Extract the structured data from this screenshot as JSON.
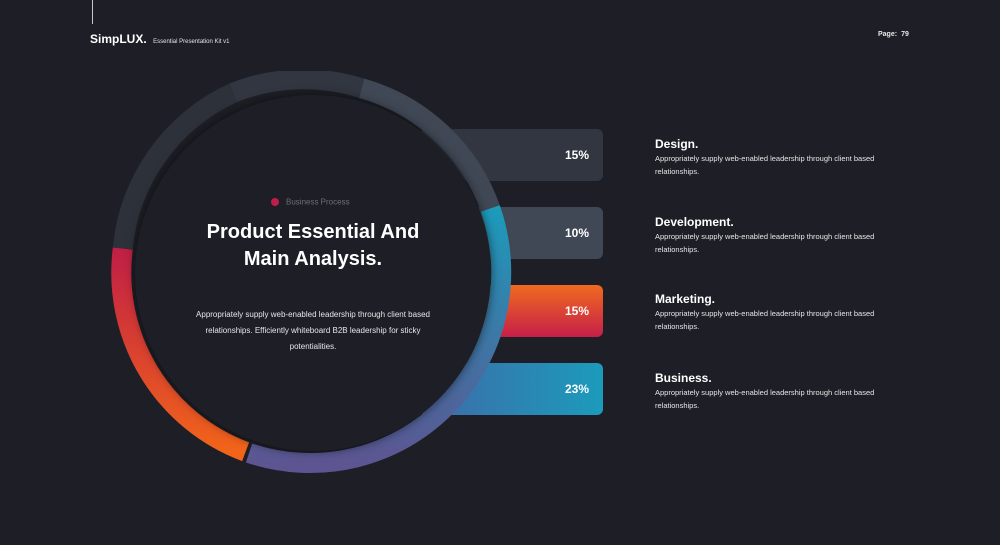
{
  "header": {
    "brand": "SimpLUX.",
    "subtitle": "Essential Presentation Kit v1",
    "page_label": "Page:",
    "page_number": "79"
  },
  "center": {
    "tag": "Business Process",
    "title_line1": "Product Essential And",
    "title_line2": "Main Analysis.",
    "description": "Appropriately supply web-enabled leadership through client based relationships. Efficiently whiteboard B2B leadership for sticky potentialities."
  },
  "bars": [
    {
      "value": "15%",
      "fraction": 0.15
    },
    {
      "value": "10%",
      "fraction": 0.1
    },
    {
      "value": "15%",
      "fraction": 0.15
    },
    {
      "value": "23%",
      "fraction": 0.23
    }
  ],
  "items": [
    {
      "title": "Design.",
      "text": "Appropriately supply web-enabled leadership through client based relationships."
    },
    {
      "title": "Development.",
      "text": "Appropriately supply web-enabled leadership through client based relationships."
    },
    {
      "title": "Marketing.",
      "text": "Appropriately supply web-enabled leadership through client based relationships."
    },
    {
      "title": "Business.",
      "text": "Appropriately supply web-enabled leadership through client based relationships."
    }
  ],
  "colors": {
    "background": "#1e1f26",
    "design": "#313640",
    "development": "#404855",
    "marketing_top": "#f06a20",
    "marketing_bottom": "#c61f48",
    "business": "#1c9bbb",
    "purple": "#5d5592",
    "accent_dot": "#c01e46"
  }
}
